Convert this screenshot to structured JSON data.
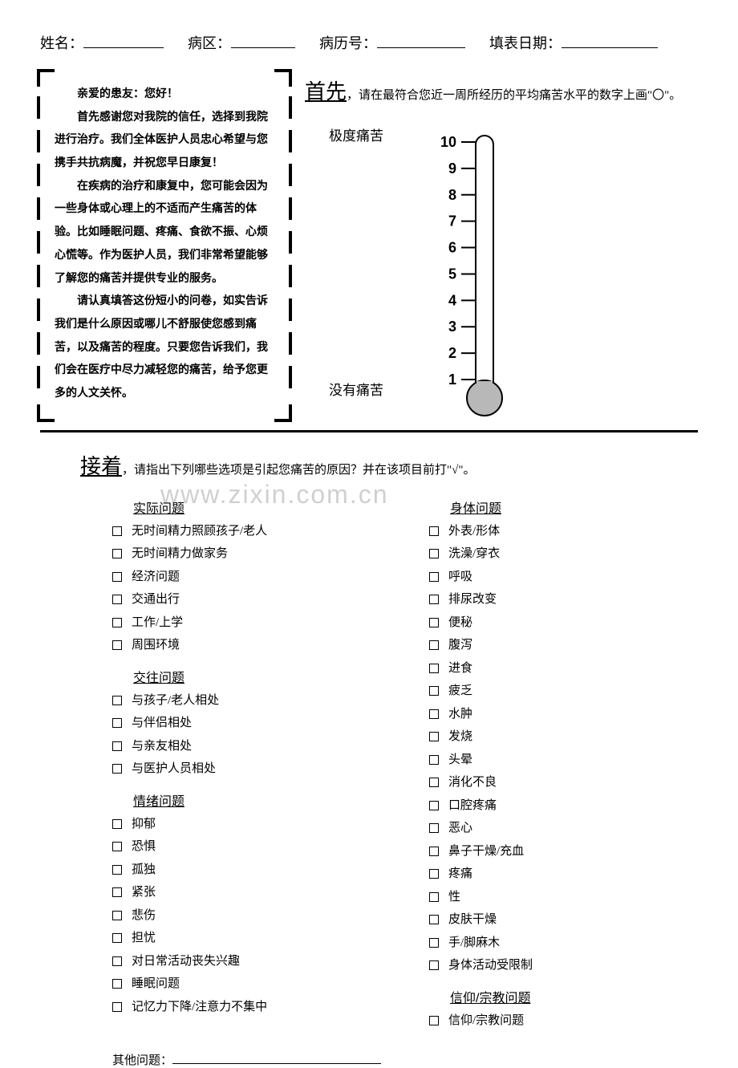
{
  "header": {
    "fields": [
      {
        "label": "姓名：",
        "underline_width": 100
      },
      {
        "label": "病区：",
        "underline_width": 80
      },
      {
        "label": "病历号：",
        "underline_width": 110
      },
      {
        "label": "填表日期：",
        "underline_width": 120
      }
    ]
  },
  "intro": {
    "greeting": "亲爱的患友：您好！",
    "paragraphs": [
      "首先感谢您对我院的信任，选择到我院进行治疗。我们全体医护人员忠心希望与您携手共抗病魔，并祝您早日康复！",
      "在疾病的治疗和康复中，您可能会因为一些身体或心理上的不适而产生痛苦的体验。比如睡眠问题、疼痛、食欲不振、心烦心慌等。作为医护人员，我们非常希望能够了解您的痛苦并提供专业的服务。",
      "请认真填答这份短小的问卷，如实告诉我们是什么原因或哪儿不舒服使您感到痛苦，以及痛苦的程度。只要您告诉我们，我们会在医疗中尽力减轻您的痛苦，给予您更多的人文关怀。"
    ]
  },
  "first_instruction": {
    "big": "首先",
    "text": "，请在最符合您近一周所经历的平均痛苦水平的数字上画\"〇\"。"
  },
  "thermometer": {
    "top_label": "极度痛苦",
    "bottom_label": "没有痛苦",
    "ticks": [
      10,
      9,
      8,
      7,
      6,
      5,
      4,
      3,
      2,
      1
    ],
    "tube_color": "#ffffff",
    "outline_color": "#000000",
    "bulb_fill": "#b8b8b8",
    "tick_label_fontsize": 18,
    "tick_label_weight": "bold"
  },
  "second_instruction": {
    "big": "接着",
    "text": "，请指出下列哪些选项是引起您痛苦的原因？并在该项目前打\"√\"。"
  },
  "checklist": {
    "left_column": [
      {
        "title": "实际问题",
        "items": [
          "无时间精力照顾孩子/老人",
          "无时间精力做家务",
          "经济问题",
          "交通出行",
          "工作/上学",
          "周围环境"
        ]
      },
      {
        "title": "交往问题",
        "items": [
          "与孩子/老人相处",
          "与伴侣相处",
          "与亲友相处",
          "与医护人员相处"
        ]
      },
      {
        "title": "情绪问题",
        "items": [
          "抑郁",
          "恐惧",
          "孤独",
          "紧张",
          "悲伤",
          "担忧",
          "对日常活动丧失兴趣",
          "睡眠问题",
          "记忆力下降/注意力不集中"
        ]
      }
    ],
    "right_column": [
      {
        "title": "身体问题",
        "items": [
          "外表/形体",
          "洗澡/穿衣",
          "呼吸",
          "排尿改变",
          "便秘",
          "腹泻",
          "进食",
          "疲乏",
          "水肿",
          "发烧",
          "头晕",
          "消化不良",
          "口腔疼痛",
          "恶心",
          "鼻子干燥/充血",
          "疼痛",
          "性",
          "皮肤干燥",
          "手/脚麻木",
          "身体活动受限制"
        ]
      },
      {
        "title": "信仰/宗教问题",
        "items": [
          "信仰/宗教问题"
        ]
      }
    ]
  },
  "other": {
    "label": "其他问题："
  },
  "watermark": "www.zixin.com.cn",
  "colors": {
    "text": "#000000",
    "background": "#ffffff",
    "watermark": "#d0d0d0"
  }
}
